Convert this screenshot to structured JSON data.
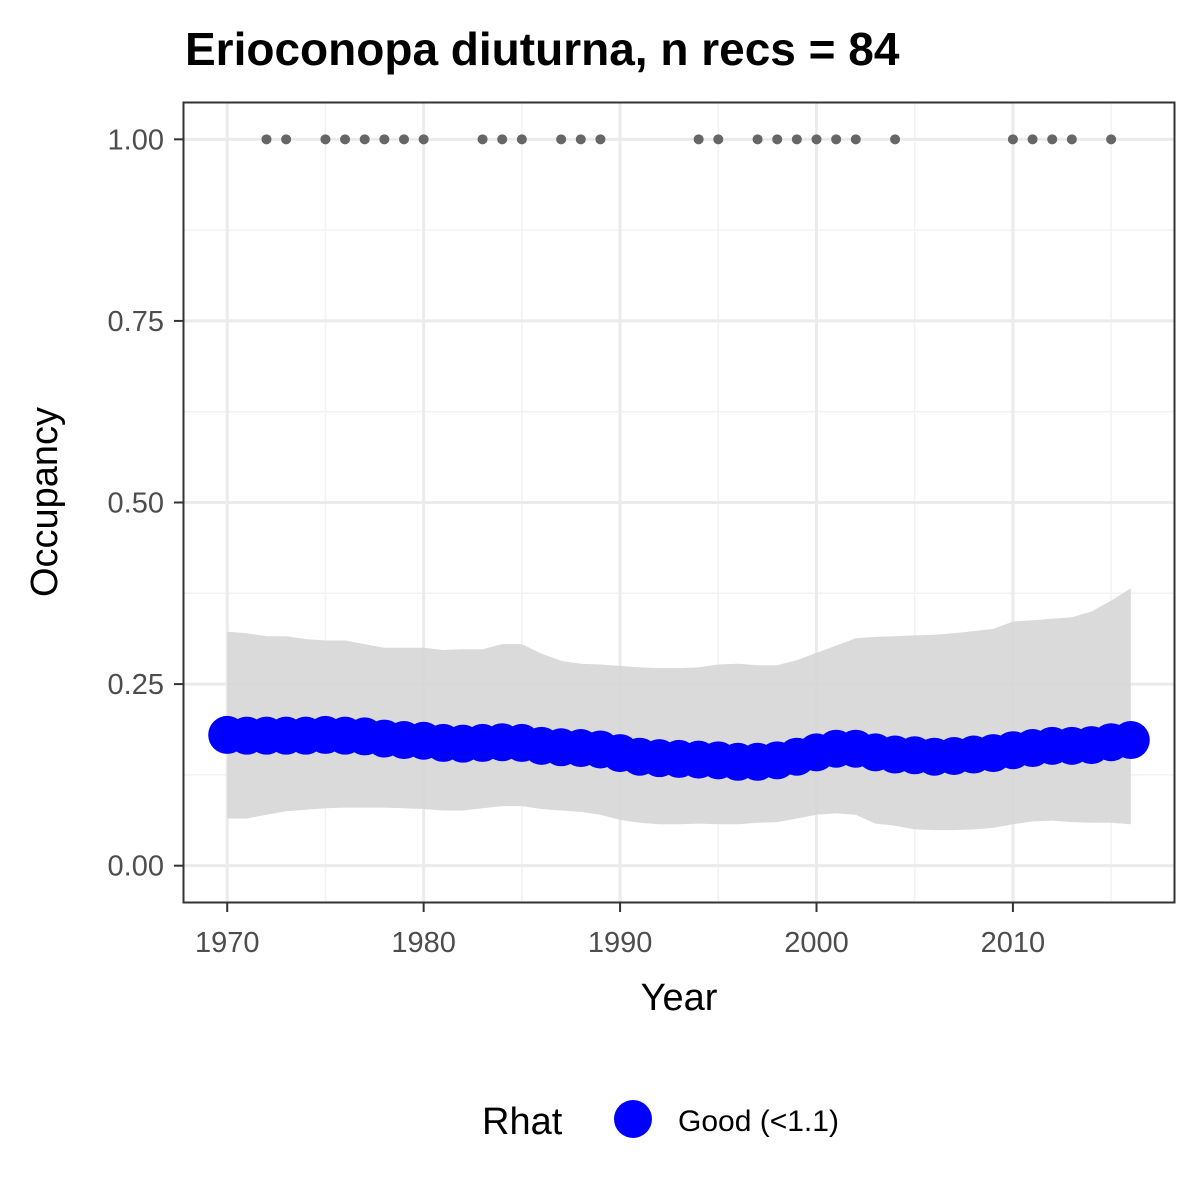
{
  "chart_data": {
    "type": "line",
    "title": "Erioconopa diuturna, n recs = 84",
    "xlabel": "Year",
    "ylabel": "Occupancy",
    "xlim": [
      1967.8,
      2018.2
    ],
    "ylim": [
      -0.05,
      1.05
    ],
    "x_ticks": [
      1970,
      1980,
      1990,
      2000,
      2010
    ],
    "x_tick_labels": [
      "1970",
      "1980",
      "1990",
      "2000",
      "2010"
    ],
    "y_ticks": [
      0,
      0.25,
      0.5,
      0.75,
      1.0
    ],
    "y_tick_labels": [
      "0.00",
      "0.25",
      "0.50",
      "0.75",
      "1.00"
    ],
    "grid": true,
    "legend": {
      "title": "Rhat",
      "position": "bottom",
      "entries": [
        {
          "label": "Good (<1.1)",
          "color": "#0000ff"
        }
      ]
    },
    "series": [
      {
        "name": "Good (<1.1)",
        "kind": "mean",
        "color": "#0000ff",
        "x": [
          1970,
          1971,
          1972,
          1973,
          1974,
          1975,
          1976,
          1977,
          1978,
          1979,
          1980,
          1981,
          1982,
          1983,
          1984,
          1985,
          1986,
          1987,
          1988,
          1989,
          1990,
          1991,
          1992,
          1993,
          1994,
          1995,
          1996,
          1997,
          1998,
          1999,
          2000,
          2001,
          2002,
          2003,
          2004,
          2005,
          2006,
          2007,
          2008,
          2009,
          2010,
          2011,
          2012,
          2013,
          2014,
          2015,
          2016
        ],
        "y": [
          0.18,
          0.179,
          0.179,
          0.179,
          0.179,
          0.18,
          0.179,
          0.178,
          0.175,
          0.173,
          0.172,
          0.169,
          0.168,
          0.169,
          0.17,
          0.169,
          0.165,
          0.163,
          0.162,
          0.16,
          0.155,
          0.15,
          0.148,
          0.147,
          0.146,
          0.145,
          0.143,
          0.143,
          0.145,
          0.15,
          0.156,
          0.161,
          0.161,
          0.156,
          0.153,
          0.152,
          0.15,
          0.151,
          0.153,
          0.155,
          0.159,
          0.162,
          0.165,
          0.165,
          0.166,
          0.17,
          0.173
        ]
      }
    ],
    "ribbon": {
      "color": "#d6d6d6",
      "x": [
        1970,
        1971,
        1972,
        1973,
        1974,
        1975,
        1976,
        1977,
        1978,
        1979,
        1980,
        1981,
        1982,
        1983,
        1984,
        1985,
        1986,
        1987,
        1988,
        1989,
        1990,
        1991,
        1992,
        1993,
        1994,
        1995,
        1996,
        1997,
        1998,
        1999,
        2000,
        2001,
        2002,
        2003,
        2004,
        2005,
        2006,
        2007,
        2008,
        2009,
        2010,
        2011,
        2012,
        2013,
        2014,
        2015,
        2016
      ],
      "lower": [
        0.065,
        0.065,
        0.07,
        0.075,
        0.077,
        0.079,
        0.08,
        0.08,
        0.08,
        0.079,
        0.078,
        0.076,
        0.076,
        0.079,
        0.082,
        0.082,
        0.078,
        0.076,
        0.074,
        0.07,
        0.063,
        0.059,
        0.057,
        0.057,
        0.058,
        0.057,
        0.057,
        0.059,
        0.06,
        0.065,
        0.07,
        0.072,
        0.07,
        0.058,
        0.055,
        0.05,
        0.049,
        0.049,
        0.05,
        0.052,
        0.057,
        0.061,
        0.062,
        0.06,
        0.059,
        0.059,
        0.057
      ],
      "upper": [
        0.322,
        0.32,
        0.316,
        0.316,
        0.312,
        0.31,
        0.31,
        0.305,
        0.3,
        0.3,
        0.3,
        0.297,
        0.298,
        0.298,
        0.305,
        0.305,
        0.292,
        0.282,
        0.278,
        0.277,
        0.275,
        0.273,
        0.272,
        0.272,
        0.273,
        0.277,
        0.278,
        0.276,
        0.276,
        0.283,
        0.293,
        0.303,
        0.313,
        0.315,
        0.316,
        0.317,
        0.318,
        0.32,
        0.323,
        0.326,
        0.336,
        0.338,
        0.34,
        0.342,
        0.35,
        0.365,
        0.382
      ]
    },
    "records": {
      "color": "#666666",
      "y": 1.0,
      "x": [
        1972,
        1973,
        1975,
        1976,
        1977,
        1978,
        1979,
        1980,
        1983,
        1984,
        1985,
        1987,
        1988,
        1989,
        1994,
        1995,
        1997,
        1998,
        1999,
        2000,
        2001,
        2002,
        2004,
        2010,
        2011,
        2012,
        2013,
        2015
      ]
    }
  }
}
